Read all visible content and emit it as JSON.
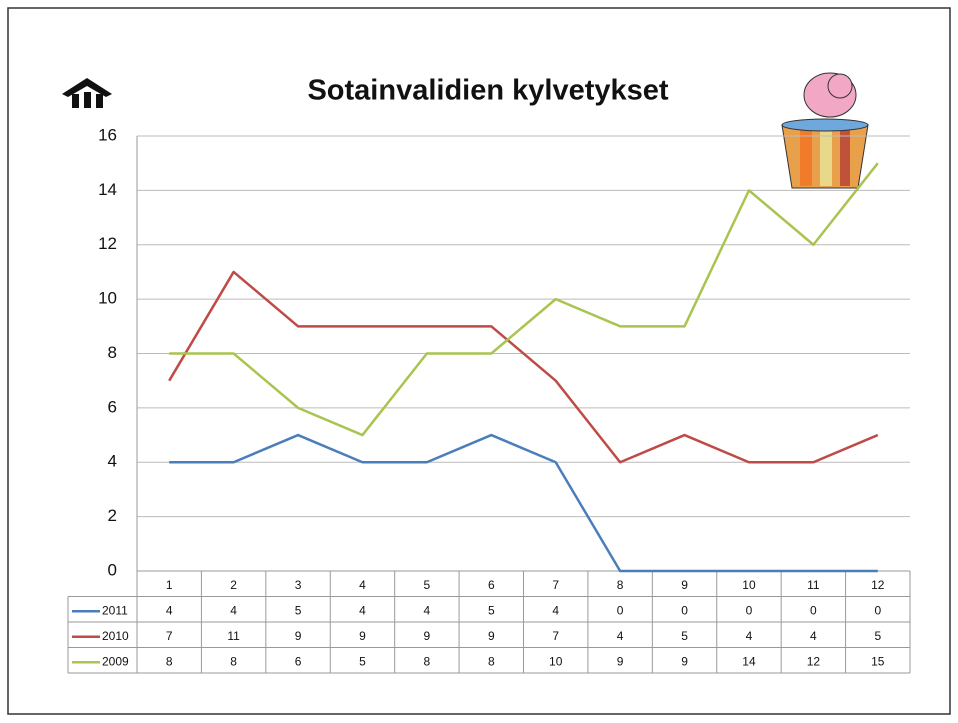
{
  "chart_data": {
    "type": "line",
    "title": "Sotainvalidien kylvetykset",
    "categories": [
      1,
      2,
      3,
      4,
      5,
      6,
      7,
      8,
      9,
      10,
      11,
      12
    ],
    "series": [
      {
        "name": "2011",
        "color": "#4a7ebb",
        "values": [
          4,
          4,
          5,
          4,
          4,
          5,
          4,
          0,
          0,
          0,
          0,
          0
        ]
      },
      {
        "name": "2010",
        "color": "#be4b48",
        "values": [
          7,
          11,
          9,
          9,
          9,
          9,
          7,
          4,
          5,
          4,
          4,
          5
        ]
      },
      {
        "name": "2009",
        "color": "#a9c44f",
        "values": [
          8,
          8,
          6,
          5,
          8,
          8,
          10,
          9,
          9,
          14,
          12,
          15
        ]
      }
    ],
    "ylim": [
      0,
      16
    ],
    "yticks": [
      0,
      2,
      4,
      6,
      8,
      10,
      12,
      14,
      16
    ],
    "grid": true
  }
}
